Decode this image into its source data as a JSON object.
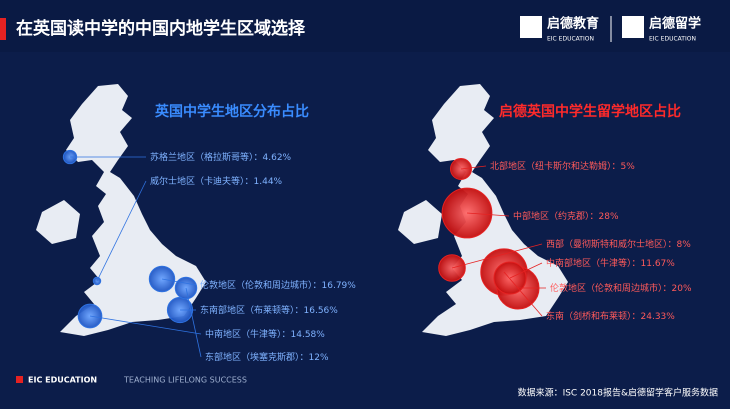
{
  "header": {
    "title": "在英国读中学的中国内地学生区域选择",
    "logo1": "启德教育",
    "logo1_sub": "EIC EDUCATION",
    "logo2": "启德留学",
    "logo2_sub": "EIC EDUCATION"
  },
  "chart_data": [
    {
      "type": "bubble",
      "title": "英国中学生地区分布占比",
      "color": "#2f72e0",
      "title_color": "#3a8cff",
      "categories": [
        "苏格兰地区（格拉斯哥等）：",
        "威尔士地区（卡迪夫等）：",
        "伦敦地区（伦敦和周边城市）：",
        "东南部地区（布莱顿等）：",
        "中南地区（牛津等）：",
        "东部地区（埃塞克斯郡）："
      ],
      "values": [
        4.62,
        1.44,
        16.79,
        16.56,
        14.58,
        12
      ],
      "value_labels": [
        "4.62%",
        "1.44%",
        "16.79%",
        "16.56%",
        "14.58%",
        "12%"
      ]
    },
    {
      "type": "bubble",
      "title": "启德英国中学生留学地区占比",
      "color": "#e52222",
      "title_color": "#ff2a2a",
      "categories": [
        "北部地区（纽卡斯尔和达勒姆）：",
        "中部地区（约克郡）：",
        "西部（曼彻斯特和威尔士地区）：",
        "中南部地区（牛津等）：",
        "伦敦地区（伦敦和周边城市）：",
        "东南（剑桥和布莱顿）："
      ],
      "values": [
        5,
        28,
        8,
        11.67,
        20,
        24.33
      ],
      "value_labels": [
        "5%",
        "28%",
        "8%",
        "11.67%",
        "20%",
        "24.33%"
      ]
    }
  ],
  "footer": {
    "brand": "EIC EDUCATION",
    "tagline": "TEACHING LIFELONG SUCCESS",
    "source": "数据来源：ISC 2018报告&启德留学客户服务数据"
  }
}
